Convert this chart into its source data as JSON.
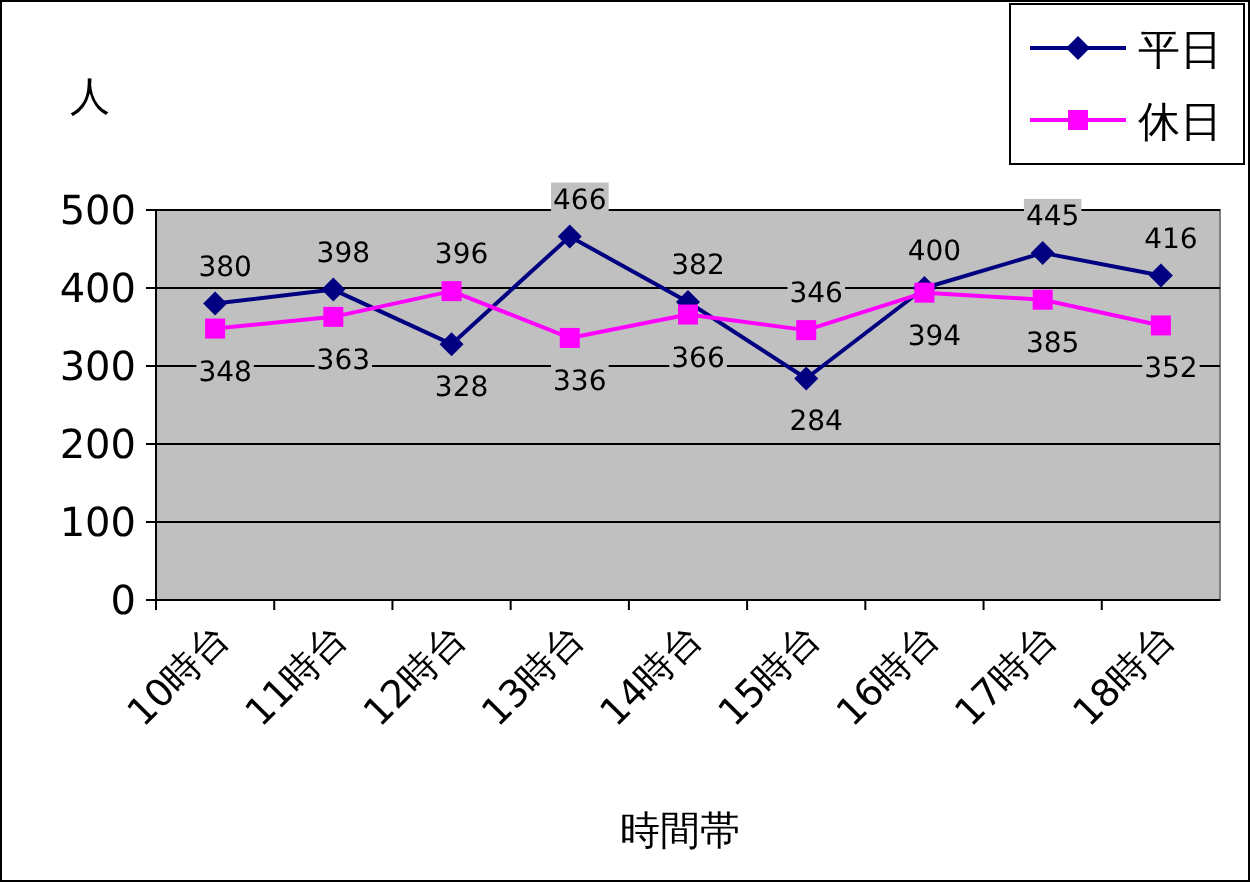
{
  "chart_data": {
    "type": "line",
    "xlabel": "時間帯",
    "ylabel": "人",
    "categories": [
      "10時台",
      "11時台",
      "12時台",
      "13時台",
      "14時台",
      "15時台",
      "16時台",
      "17時台",
      "18時台"
    ],
    "series": [
      {
        "name": "平日",
        "color": "#000080",
        "marker": "diamond",
        "values": [
          380,
          398,
          328,
          466,
          382,
          284,
          400,
          445,
          416
        ]
      },
      {
        "name": "休日",
        "color": "#ff00ff",
        "marker": "square",
        "values": [
          348,
          363,
          396,
          336,
          366,
          346,
          394,
          385,
          352
        ]
      }
    ],
    "ylim": [
      0,
      500
    ],
    "yticks": [
      0,
      100,
      200,
      300,
      400,
      500
    ],
    "grid": "y",
    "legend": "top right",
    "data_labels": true,
    "line_style": "solid"
  }
}
